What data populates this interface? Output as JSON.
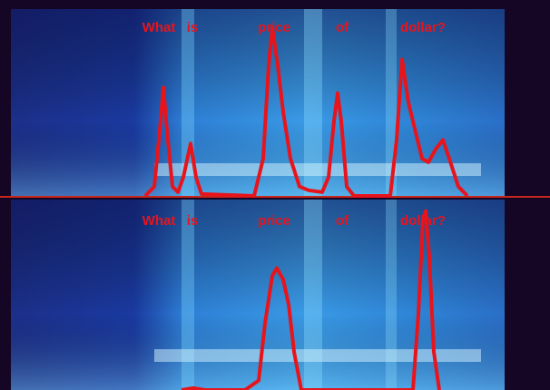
{
  "chart_data": [
    {
      "type": "line",
      "annotations": [
        {
          "text": "What",
          "x": 175
        },
        {
          "text": "is",
          "x": 212
        },
        {
          "text": "price",
          "x": 302
        },
        {
          "text": "of",
          "x": 377
        },
        {
          "text": "dollar?",
          "x": 466
        }
      ],
      "x": [
        160,
        170,
        176,
        180,
        184,
        190,
        196,
        202,
        210,
        216,
        222,
        280,
        290,
        296,
        300,
        306,
        312,
        320,
        330,
        340,
        355,
        362,
        368,
        372,
        376,
        382,
        390,
        430,
        437,
        443,
        450,
        456,
        465,
        472,
        480,
        488,
        495,
        505,
        515
      ],
      "series": [
        {
          "color": "#e8141c",
          "values": [
            0,
            0.05,
            0.35,
            0.58,
            0.35,
            0.05,
            0.02,
            0.1,
            0.28,
            0.1,
            0.01,
            0,
            0.2,
            0.7,
            0.9,
            0.7,
            0.45,
            0.2,
            0.05,
            0.03,
            0.02,
            0.1,
            0.4,
            0.55,
            0.4,
            0.05,
            0,
            0,
            0.3,
            0.73,
            0.5,
            0.38,
            0.2,
            0.18,
            0.25,
            0.3,
            0.2,
            0.05,
            0
          ]
        }
      ],
      "xlim": [
        12,
        556
      ],
      "ylim": [
        0,
        1
      ]
    },
    {
      "type": "line",
      "annotations": [
        {
          "text": "What",
          "x": 175
        },
        {
          "text": "is",
          "x": 212
        },
        {
          "text": "price",
          "x": 302
        },
        {
          "text": "of",
          "x": 377
        },
        {
          "text": "dollar?",
          "x": 466
        }
      ],
      "x": [
        200,
        207,
        213,
        219,
        226,
        270,
        285,
        292,
        300,
        305,
        312,
        318,
        324,
        332,
        455,
        461,
        466,
        469,
        473,
        478,
        484
      ],
      "series": [
        {
          "color": "#e8141c",
          "values": [
            0,
            0.005,
            0.01,
            0.005,
            0,
            0,
            0.05,
            0.35,
            0.6,
            0.64,
            0.58,
            0.45,
            0.2,
            0,
            0,
            0.4,
            0.9,
            0.94,
            0.7,
            0.2,
            0
          ]
        }
      ],
      "xlim": [
        12,
        556
      ],
      "ylim": [
        0,
        1
      ]
    }
  ]
}
